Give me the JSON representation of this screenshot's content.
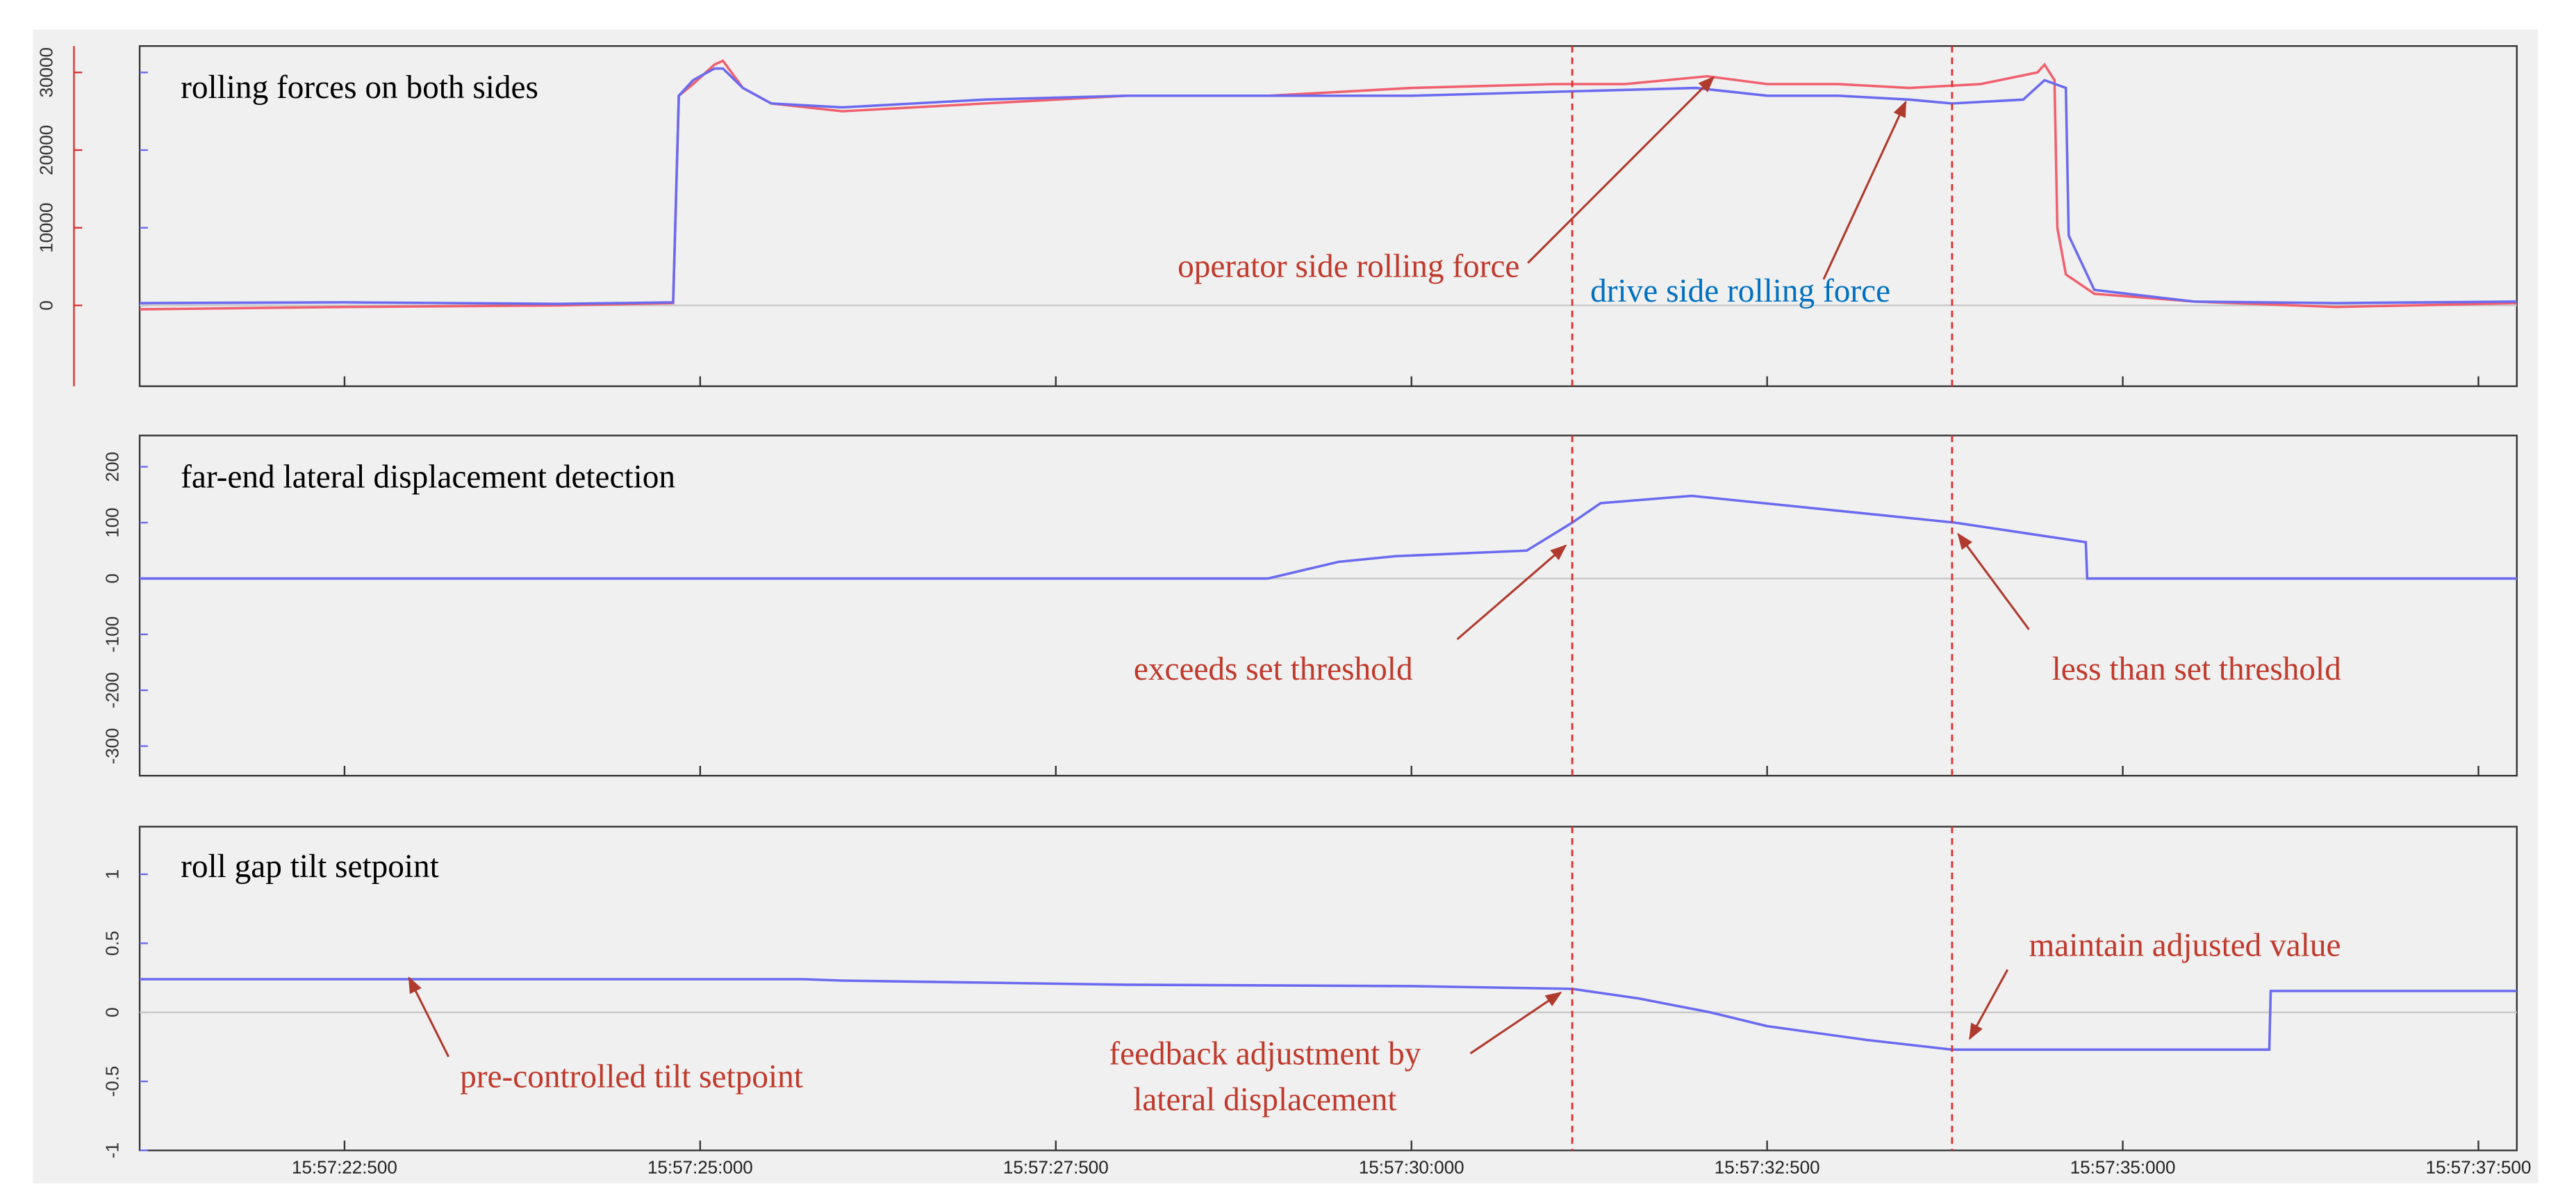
{
  "chart_data": [
    {
      "type": "line",
      "title": "rolling forces on both sides",
      "xlim": [
        21.06,
        37.77
      ],
      "ylim": [
        -10400,
        33400
      ],
      "yticks": [
        0,
        10000,
        20000,
        30000
      ],
      "markers": [
        31.13,
        33.8
      ],
      "series": [
        {
          "name": "operator side rolling force",
          "color": "#f0606e",
          "x": [
            21.06,
            22.5,
            24.0,
            24.81,
            24.85,
            24.95,
            25.1,
            25.16,
            25.3,
            25.5,
            26.0,
            27.0,
            28.0,
            29.0,
            30.0,
            31.0,
            31.5,
            32.08,
            32.5,
            33.0,
            33.5,
            34.0,
            34.4,
            34.45,
            34.52,
            34.54,
            34.6,
            34.8,
            35.5,
            36.5,
            37.77
          ],
          "values": [
            -500,
            -200,
            0,
            300,
            27000,
            28500,
            31000,
            31500,
            28000,
            26000,
            25000,
            26000,
            27000,
            27000,
            28000,
            28500,
            28500,
            29500,
            28500,
            28500,
            28000,
            28500,
            30000,
            31000,
            29000,
            10000,
            4000,
            1500,
            500,
            -200,
            300
          ]
        },
        {
          "name": "drive side rolling force",
          "color": "#6a6af0",
          "x": [
            21.06,
            22.5,
            24.0,
            24.81,
            24.85,
            24.95,
            25.1,
            25.16,
            25.3,
            25.5,
            26.0,
            27.0,
            28.0,
            29.0,
            30.0,
            31.0,
            32.0,
            32.5,
            33.0,
            33.5,
            33.8,
            34.3,
            34.45,
            34.6,
            34.62,
            34.8,
            35.5,
            36.5,
            37.77
          ],
          "values": [
            300,
            400,
            200,
            400,
            27000,
            29000,
            30500,
            30500,
            28000,
            26000,
            25500,
            26500,
            27000,
            27000,
            27000,
            27500,
            28000,
            27000,
            27000,
            26500,
            26000,
            26500,
            29000,
            28000,
            9000,
            2000,
            500,
            300,
            500
          ]
        }
      ],
      "annotations": [
        {
          "lines": [
            "operator side rolling force"
          ],
          "color": "#c0392b"
        },
        {
          "lines": [
            "drive side rolling force"
          ],
          "color": "#0070c0"
        }
      ]
    },
    {
      "type": "line",
      "title": "far-end lateral displacement detection",
      "xlim": [
        21.06,
        37.77
      ],
      "ylim": [
        -353,
        256
      ],
      "yticks": [
        -300,
        -200,
        -100,
        0,
        100,
        200
      ],
      "markers": [
        31.13,
        33.8
      ],
      "series": [
        {
          "color": "#6a6af0",
          "x": [
            21.06,
            28.99,
            29.49,
            29.89,
            30.81,
            31.13,
            31.33,
            31.97,
            33.82,
            34.74,
            34.75,
            37.77
          ],
          "values": [
            0,
            0,
            30,
            40,
            50,
            100,
            135,
            148,
            100,
            65,
            0,
            0
          ]
        }
      ],
      "annotations": [
        {
          "lines": [
            "exceeds set threshold"
          ],
          "color": "#c0392b"
        },
        {
          "lines": [
            "less than set threshold"
          ],
          "color": "#c0392b"
        }
      ]
    },
    {
      "type": "line",
      "title": "roll gap tilt setpoint",
      "xlim": [
        21.06,
        37.77
      ],
      "ylim": [
        -1,
        1.345
      ],
      "yticks": [
        -1,
        -0.5,
        0,
        0.5,
        1
      ],
      "xticks": [
        {
          "value": 22.5,
          "label": "15:57:22:500"
        },
        {
          "value": 25,
          "label": "15:57:25:000"
        },
        {
          "value": 27.5,
          "label": "15:57:27:500"
        },
        {
          "value": 30,
          "label": "15:57:30:000"
        },
        {
          "value": 32.5,
          "label": "15:57:32:500"
        },
        {
          "value": 35,
          "label": "15:57:35:000"
        },
        {
          "value": 37.5,
          "label": "15:57:37:500"
        }
      ],
      "markers": [
        31.13,
        33.8
      ],
      "series": [
        {
          "color": "#6a6af0",
          "x": [
            21.06,
            25.73,
            26.0,
            28.0,
            30.0,
            31.13,
            31.6,
            32.1,
            32.5,
            33.2,
            33.8,
            36.03,
            36.04,
            37.77
          ],
          "values": [
            0.24,
            0.24,
            0.23,
            0.2,
            0.19,
            0.17,
            0.1,
            0,
            -0.1,
            -0.2,
            -0.27,
            -0.27,
            0.155,
            0.155
          ]
        }
      ],
      "annotations": [
        {
          "lines": [
            "pre-controlled tilt setpoint"
          ],
          "color": "#c0392b"
        },
        {
          "lines": [
            "feedback adjustment by",
            "lateral displacement"
          ],
          "color": "#c0392b"
        },
        {
          "lines": [
            "maintain adjusted value"
          ],
          "color": "#c0392b"
        }
      ]
    }
  ]
}
